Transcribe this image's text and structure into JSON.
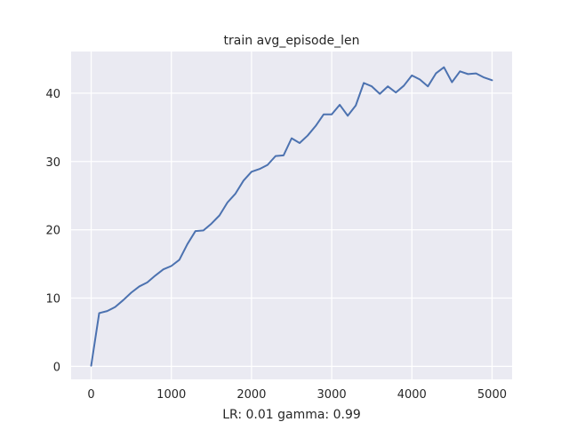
{
  "chart_data": {
    "type": "line",
    "title": "train avg_episode_len",
    "xlabel": "LR: 0.01 gamma: 0.99",
    "ylabel": "",
    "xlim": [
      -250,
      5250
    ],
    "ylim": [
      -1.9,
      46.1
    ],
    "xticks": [
      0,
      1000,
      2000,
      3000,
      4000,
      5000
    ],
    "yticks": [
      0,
      10,
      20,
      30,
      40
    ],
    "grid": true,
    "legend": "none",
    "series": [
      {
        "color": "#4c72b0",
        "x": [
          0,
          100,
          200,
          300,
          400,
          500,
          600,
          700,
          800,
          900,
          1000,
          1100,
          1200,
          1300,
          1400,
          1500,
          1600,
          1700,
          1800,
          1900,
          2000,
          2100,
          2200,
          2300,
          2400,
          2500,
          2600,
          2700,
          2800,
          2900,
          3000,
          3100,
          3200,
          3300,
          3400,
          3500,
          3600,
          3700,
          3800,
          3900,
          4000,
          4100,
          4200,
          4300,
          4400,
          4500,
          4600,
          4700,
          4800,
          4900,
          5000
        ],
        "values": [
          0.1,
          7.8,
          8.1,
          8.7,
          9.7,
          10.8,
          11.7,
          12.3,
          13.3,
          14.2,
          14.7,
          15.6,
          17.9,
          19.8,
          19.9,
          20.9,
          22.1,
          24.0,
          25.3,
          27.2,
          28.5,
          28.9,
          29.5,
          30.8,
          30.9,
          33.4,
          32.7,
          33.8,
          35.2,
          36.9,
          36.9,
          38.3,
          36.7,
          38.2,
          41.5,
          41.0,
          39.9,
          41.0,
          40.1,
          41.1,
          42.6,
          42.0,
          41.0,
          42.9,
          43.8,
          41.6,
          43.2,
          42.8,
          42.9,
          42.3,
          41.9
        ]
      }
    ]
  },
  "colors": {
    "axes_background": "#eaeaf2",
    "grid": "#ffffff",
    "line": "#4c72b0",
    "text": "#262626"
  }
}
